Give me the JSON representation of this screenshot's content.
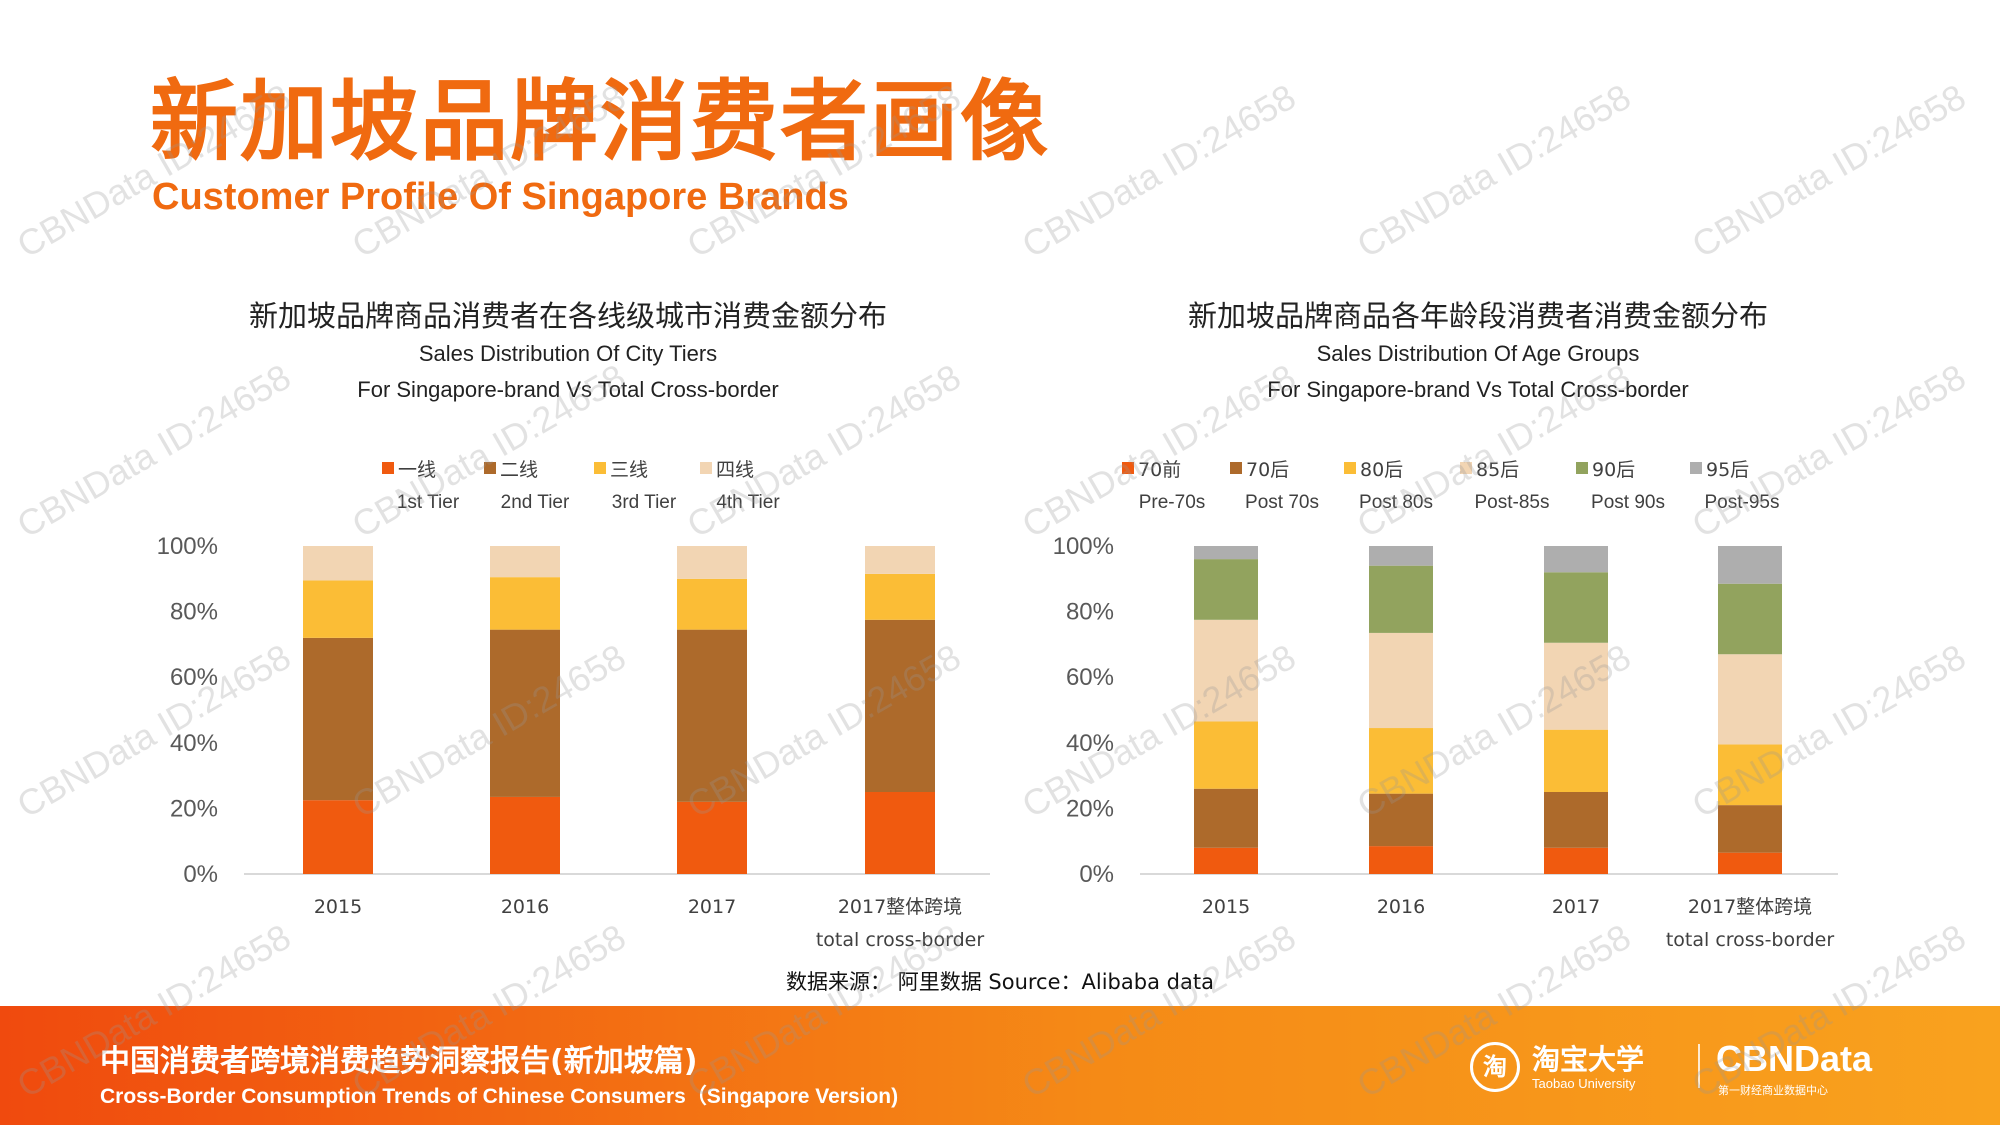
{
  "header": {
    "title_cn": "新加坡品牌消费者画像",
    "title_en": "Customer Profile Of Singapore Brands"
  },
  "watermark": "CBNData ID:24658",
  "source": "数据来源： 阿里数据  Source：Alibaba data",
  "footer": {
    "title_cn": "中国消费者跨境消费趋势洞察报告(新加坡篇)",
    "title_en": "Cross-Border Consumption Trends of Chinese Consumers（Singapore Version)",
    "taobao_icon": "淘",
    "taobao_name": "淘宝大学",
    "taobao_en": "Taobao University",
    "cbn_logo": "CBNData",
    "cbn_sub": "第一财经商业数据中心"
  },
  "chart_data": [
    {
      "type": "bar",
      "stacked": true,
      "title_cn": "新加坡品牌商品消费者在各线级城市消费金额分布",
      "title_en_1": "Sales Distribution Of City Tiers",
      "title_en_2": "For Singapore-brand Vs Total Cross-border",
      "categories": [
        {
          "line1": "2015",
          "line2": ""
        },
        {
          "line1": "2016",
          "line2": ""
        },
        {
          "line1": "2017",
          "line2": ""
        },
        {
          "line1": "2017整体跨境",
          "line2": "total cross-border"
        }
      ],
      "series": [
        {
          "name": "一线",
          "name_en": "1st Tier",
          "color": "#f05a0f",
          "values": [
            0.225,
            0.235,
            0.22,
            0.25
          ]
        },
        {
          "name": "二线",
          "name_en": "2nd Tier",
          "color": "#ad6a2b",
          "values": [
            0.495,
            0.51,
            0.525,
            0.525
          ]
        },
        {
          "name": "三线",
          "name_en": "3rd Tier",
          "color": "#fbbd36",
          "values": [
            0.175,
            0.16,
            0.155,
            0.14
          ]
        },
        {
          "name": "四线",
          "name_en": "4th Tier",
          "color": "#f2d5b3",
          "values": [
            0.105,
            0.095,
            0.1,
            0.085
          ]
        }
      ],
      "yticks": [
        "0%",
        "20%",
        "40%",
        "60%",
        "80%",
        "100%"
      ],
      "ylim": [
        0,
        1
      ],
      "legend_position": "top"
    },
    {
      "type": "bar",
      "stacked": true,
      "title_cn": "新加坡品牌商品各年龄段消费者消费金额分布",
      "title_en_1": "Sales Distribution Of Age Groups",
      "title_en_2": "For Singapore-brand Vs Total Cross-border",
      "categories": [
        {
          "line1": "2015",
          "line2": ""
        },
        {
          "line1": "2016",
          "line2": ""
        },
        {
          "line1": "2017",
          "line2": ""
        },
        {
          "line1": "2017整体跨境",
          "line2": "total cross-border"
        }
      ],
      "series": [
        {
          "name": "70前",
          "name_en": "Pre-70s",
          "color": "#f05a0f",
          "values": [
            0.08,
            0.085,
            0.08,
            0.065
          ]
        },
        {
          "name": "70后",
          "name_en": "Post 70s",
          "color": "#ad6a2b",
          "values": [
            0.18,
            0.16,
            0.17,
            0.145
          ]
        },
        {
          "name": "80后",
          "name_en": "Post 80s",
          "color": "#fbbd36",
          "values": [
            0.205,
            0.2,
            0.19,
            0.185
          ]
        },
        {
          "name": "85后",
          "name_en": "Post-85s",
          "color": "#f2d5b3",
          "values": [
            0.31,
            0.29,
            0.265,
            0.275
          ]
        },
        {
          "name": "90后",
          "name_en": "Post 90s",
          "color": "#92a35e",
          "values": [
            0.185,
            0.205,
            0.215,
            0.215
          ]
        },
        {
          "name": "95后",
          "name_en": "Post-95s",
          "color": "#aeaeae",
          "values": [
            0.04,
            0.06,
            0.08,
            0.115
          ]
        }
      ],
      "yticks": [
        "0%",
        "20%",
        "40%",
        "60%",
        "80%",
        "100%"
      ],
      "ylim": [
        0,
        1
      ],
      "legend_position": "top"
    }
  ]
}
